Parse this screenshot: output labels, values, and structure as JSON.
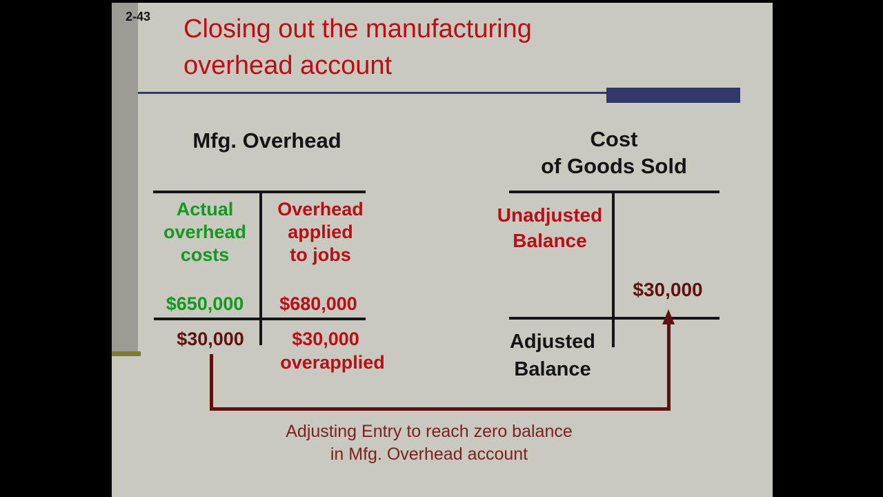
{
  "page_number": "2-43",
  "title": {
    "line1": "Closing out the manufacturing",
    "line2": "overhead account"
  },
  "accounts": {
    "mfg_overhead": {
      "title": "Mfg. Overhead",
      "debit_header": [
        "Actual",
        "overhead",
        "costs"
      ],
      "credit_header": [
        "Overhead",
        "applied",
        "to jobs"
      ],
      "debit_amount": "$650,000",
      "credit_amount": "$680,000",
      "debit_balance": "$30,000",
      "credit_entry_amount": "$30,000",
      "credit_entry_note": "overapplied"
    },
    "cost_of_goods_sold": {
      "title": [
        "Cost",
        "of Goods Sold"
      ],
      "unadjusted_label": [
        "Unadjusted",
        "Balance"
      ],
      "entry_amount": "$30,000",
      "adjusted_label": [
        "Adjusted",
        "Balance"
      ]
    }
  },
  "caption": {
    "line1": "Adjusting Entry to reach zero balance",
    "line2": "in Mfg. Overhead account"
  },
  "colors": {
    "slide_bg": "#c9c9c0",
    "strip": "#9c9c94",
    "olive": "#7c7c2e",
    "title_red": "#bb0d13",
    "navy": "#31386a",
    "green": "#129a20",
    "red": "#b80f16",
    "maroon": "#5e1111",
    "caption_maroon": "#7b2121",
    "ink": "#141414"
  }
}
